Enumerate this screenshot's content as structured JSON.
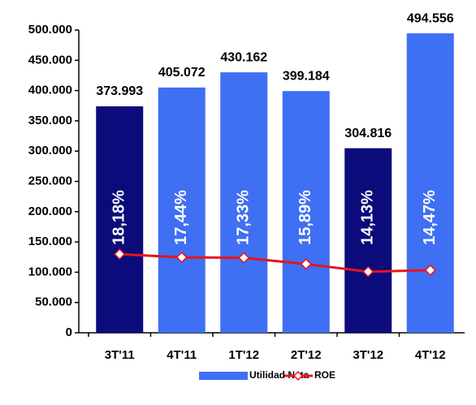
{
  "chart_data": {
    "type": "bar",
    "categories": [
      "3T'11",
      "4T'11",
      "1T'12",
      "2T'12",
      "3T'12",
      "4T'12"
    ],
    "series": [
      {
        "name": "Utilidad Neta",
        "color": "#3f6ff2",
        "colors": [
          "#0b0b7c",
          "#3f6ff2",
          "#3f6ff2",
          "#3f6ff2",
          "#0b0b7c",
          "#3f6ff2"
        ],
        "values": [
          373993,
          405072,
          430162,
          399184,
          304816,
          494556
        ],
        "value_labels": [
          "373.993",
          "405.072",
          "430.162",
          "399.184",
          "304.816",
          "494.556"
        ]
      },
      {
        "name": "ROE",
        "type": "line",
        "axis": "y2",
        "color": "#e8141b",
        "values": [
          18.18,
          17.44,
          17.33,
          15.89,
          14.13,
          14.47
        ],
        "value_labels": [
          "18,18%",
          "17,44%",
          "17,33%",
          "15,89%",
          "14,13%",
          "14,47%"
        ]
      }
    ],
    "ylim": [
      0,
      500000
    ],
    "yticks": [
      0,
      {
        "value": 50000,
        "label": "50.000"
      },
      {
        "value": 100000,
        "label": "100.000"
      },
      {
        "value": 150000,
        "label": "150.000"
      },
      {
        "value": 200000,
        "label": "200.000"
      },
      {
        "value": 250000,
        "label": "250.000"
      },
      {
        "value": 300000,
        "label": "300.000"
      },
      {
        "value": 350000,
        "label": "350.000"
      },
      {
        "value": 400000,
        "label": "400.000"
      },
      {
        "value": 450000,
        "label": "450.000"
      },
      {
        "value": 500000,
        "label": "500.000"
      }
    ],
    "y2lim": [
      0,
      70
    ],
    "grid": false,
    "legend": "bottom"
  }
}
